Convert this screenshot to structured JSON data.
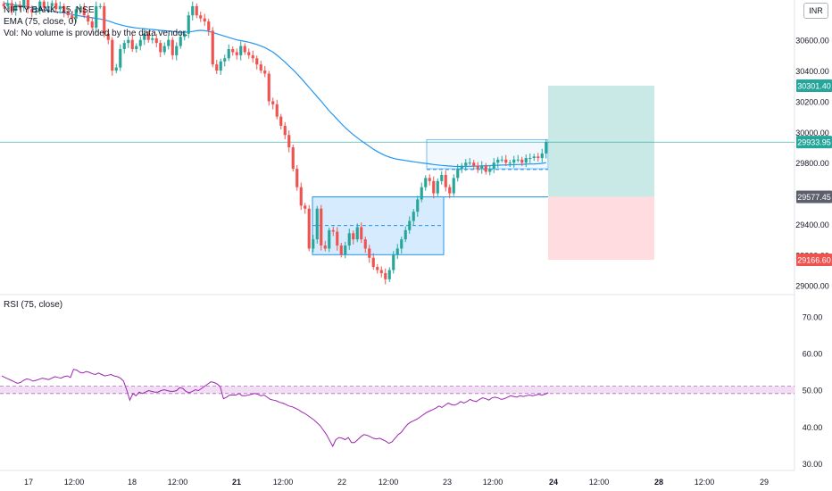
{
  "legend": {
    "symbol": "NIFTY BANK, 15, NSE",
    "ema": "EMA (75, close, 0)",
    "vol": "Vol: No volume is provided by the data vendor."
  },
  "rsi_label": "RSI (75, close)",
  "currency": "INR",
  "colors": {
    "up": "#26a69a",
    "down": "#ef5350",
    "ema": "#2196f3",
    "rsi": "#9c27b0",
    "target_zone": "#b2dfdb",
    "stop_zone": "#ffcdd2",
    "box_fill": "#bbdefb",
    "box_line": "#2196f3",
    "price_line": "#26a69a",
    "target_tag": "#26a69a",
    "stop_tag": "#ef5350",
    "entry_tag": "#5d606b"
  },
  "price_axis_ticks": [
    "30600.00",
    "30400.00",
    "30200.00",
    "30000.00",
    "29800.00",
    "29600.00",
    "29400.00",
    "29200.00",
    "29000.00"
  ],
  "rsi_axis_ticks": [
    "70.00",
    "60.00",
    "50.00",
    "40.00",
    "30.00"
  ],
  "time_axis_ticks": [
    "17",
    "12:00",
    "18",
    "12:00",
    "21",
    "12:00",
    "22",
    "12:00",
    "23",
    "12:00",
    "24",
    "12:00",
    "28",
    "12:00",
    "29"
  ],
  "price_tags": {
    "target": "30301.40",
    "current": "29933.95",
    "entry": "29577.45",
    "stop": "29166.60"
  },
  "chart_data": [
    {
      "type": "candlestick",
      "title": "NIFTY BANK, 15, NSE",
      "x_unit": "bar index (15-minute bars)",
      "ylim": [
        28940,
        30860
      ],
      "ema_label": "EMA (75, close, 0)",
      "close": [
        30820,
        30840,
        30790,
        30830,
        30810,
        30860,
        30800,
        30780,
        30790,
        30850,
        30810,
        30820,
        30840,
        30800,
        30820,
        30780,
        30760,
        30740,
        30800,
        30810,
        30760,
        30720,
        30680,
        30820,
        30820,
        30640,
        30600,
        30400,
        30420,
        30540,
        30580,
        30600,
        30540,
        30560,
        30600,
        30640,
        30600,
        30610,
        30580,
        30520,
        30560,
        30600,
        30500,
        30560,
        30620,
        30640,
        30760,
        30820,
        30760,
        30740,
        30720,
        30660,
        30440,
        30400,
        30460,
        30480,
        30540,
        30520,
        30500,
        30560,
        30520,
        30500,
        30480,
        30440,
        30400,
        30380,
        30200,
        30180,
        30100,
        30040,
        29980,
        29900,
        29760,
        29640,
        29520,
        29500,
        29240,
        29300,
        29500,
        29260,
        29240,
        29360,
        29350,
        29260,
        29200,
        29260,
        29340,
        29300,
        29380,
        29300,
        29240,
        29180,
        29120,
        29100,
        29080,
        29040,
        29100,
        29200,
        29240,
        29300,
        29360,
        29420,
        29480,
        29560,
        29640,
        29700,
        29680,
        29600,
        29680,
        29720,
        29640,
        29600,
        29700,
        29760,
        29780,
        29800,
        29800,
        29780,
        29760,
        29780,
        29740,
        29760,
        29800,
        29820,
        29820,
        29800,
        29800,
        29820,
        29820,
        29800,
        29830,
        29830,
        29840,
        29830,
        29860,
        29934
      ],
      "ema": [
        30840,
        30835,
        30830,
        30826,
        30822,
        30820,
        30815,
        30810,
        30805,
        30800,
        30795,
        30790,
        30786,
        30782,
        30780,
        30776,
        30772,
        30766,
        30760,
        30756,
        30752,
        30748,
        30744,
        30740,
        30736,
        30730,
        30724,
        30715,
        30705,
        30698,
        30692,
        30686,
        30682,
        30678,
        30675,
        30673,
        30670,
        30668,
        30665,
        30662,
        30660,
        30658,
        30655,
        30652,
        30650,
        30650,
        30652,
        30655,
        30660,
        30662,
        30660,
        30655,
        30648,
        30640,
        30632,
        30624,
        30616,
        30608,
        30600,
        30595,
        30590,
        30585,
        30578,
        30570,
        30560,
        30550,
        30535,
        30520,
        30500,
        30478,
        30455,
        30430,
        30405,
        30378,
        30350,
        30320,
        30290,
        30260,
        30230,
        30200,
        30168,
        30138,
        30110,
        30082,
        30054,
        30028,
        30004,
        29982,
        29962,
        29942,
        29924,
        29906,
        29888,
        29872,
        29858,
        29846,
        29836,
        29828,
        29822,
        29818,
        29814,
        29810,
        29806,
        29802,
        29798,
        29795,
        29792,
        29788,
        29785,
        29782,
        29780,
        29778,
        29776,
        29775,
        29775,
        29775,
        29776,
        29777,
        29778,
        29779,
        29780,
        29781,
        29782,
        29783,
        29784,
        29785,
        29786,
        29787,
        29788,
        29789,
        29790,
        29791,
        29792,
        29793,
        29795,
        29800
      ]
    },
    {
      "type": "line",
      "title": "RSI (75, close)",
      "ylim": [
        28,
        76
      ],
      "reference_band": [
        49,
        51
      ],
      "values": [
        53.8,
        53.4,
        53.0,
        52.6,
        52.2,
        51.8,
        52.0,
        52.6,
        53.0,
        52.8,
        52.4,
        52.6,
        52.9,
        53.2,
        53.0,
        52.8,
        53.2,
        53.6,
        53.4,
        53.2,
        53.6,
        53.8,
        53.4,
        55.6,
        55.4,
        54.8,
        54.6,
        55.0,
        54.8,
        54.4,
        54.2,
        54.6,
        54.2,
        53.8,
        54.0,
        54.2,
        53.8,
        53.6,
        53.2,
        52.4,
        50.0,
        47.2,
        49.0,
        48.4,
        49.4,
        49.0,
        49.4,
        49.8,
        49.6,
        49.4,
        49.4,
        49.8,
        50.0,
        49.8,
        49.6,
        49.6,
        49.8,
        50.6,
        50.4,
        49.6,
        49.2,
        49.6,
        50.0,
        49.8,
        50.4,
        51.0,
        51.6,
        52.2,
        52.0,
        51.6,
        50.8,
        47.6,
        48.0,
        48.6,
        48.6,
        48.6,
        49.0,
        48.4,
        48.4,
        48.6,
        48.8,
        49.0,
        48.8,
        48.4,
        48.6,
        48.0,
        47.4,
        47.2,
        47.0,
        46.6,
        46.4,
        46.0,
        45.6,
        45.4,
        45.0,
        44.6,
        44.0,
        43.6,
        43.0,
        42.4,
        41.8,
        41.0,
        40.2,
        39.0,
        37.8,
        36.2,
        34.6,
        36.4,
        37.0,
        36.8,
        36.4,
        37.0,
        35.6,
        35.6,
        36.4,
        37.2,
        37.8,
        37.6,
        37.2,
        36.8,
        36.6,
        36.8,
        36.4,
        36.0,
        35.4,
        35.8,
        36.8,
        37.8,
        38.4,
        39.6,
        40.6,
        41.2,
        41.6,
        42.0,
        42.6,
        43.2,
        43.8,
        44.2,
        44.6,
        45.0,
        45.6,
        45.2,
        45.8,
        46.4,
        46.0,
        45.8,
        46.2,
        46.8,
        46.4,
        46.8,
        47.4,
        47.0,
        46.8,
        47.4,
        47.8,
        47.6,
        47.2,
        47.8,
        48.0,
        47.8,
        47.4,
        47.6,
        48.0,
        48.4,
        48.2,
        48.0,
        48.4,
        48.2,
        48.4,
        48.6,
        48.4,
        48.6,
        48.8,
        48.6,
        48.8,
        49.2
      ]
    }
  ]
}
